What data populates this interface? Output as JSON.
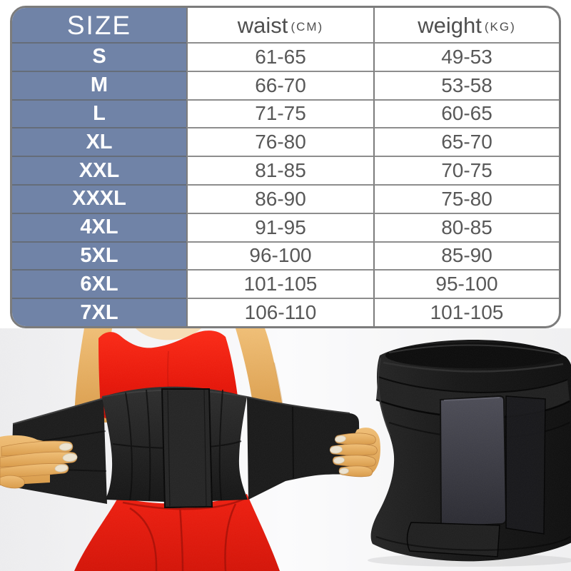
{
  "chart_data": {
    "type": "table",
    "columns": [
      {
        "label": "SIZE",
        "unit": ""
      },
      {
        "label": "waist",
        "unit": "(CM)"
      },
      {
        "label": "weight",
        "unit": "(KG)"
      }
    ],
    "rows": [
      [
        "S",
        "61-65",
        "49-53"
      ],
      [
        "M",
        "66-70",
        "53-58"
      ],
      [
        "L",
        "71-75",
        "60-65"
      ],
      [
        "XL",
        "76-80",
        "65-70"
      ],
      [
        "XXL",
        "81-85",
        "70-75"
      ],
      [
        "XXXL",
        "86-90",
        "75-80"
      ],
      [
        "4XL",
        "91-95",
        "80-85"
      ],
      [
        "5XL",
        "96-100",
        "85-90"
      ],
      [
        "6XL",
        "101-105",
        "95-100"
      ],
      [
        "7XL",
        "106-110",
        "101-105"
      ]
    ]
  },
  "colors": {
    "size_column_blue": "#7083A7",
    "table_border_gray": "#7c7c7c",
    "cell_text_gray": "#585858",
    "accent_red": "#e8150a",
    "garment_black": "#161616",
    "photo_background": "#f2f2f3"
  },
  "photos": {
    "model_alt": "Model wearing red top and leggings with black wrap waist trainer",
    "product_alt": "Black wrap waist trainer band product"
  }
}
